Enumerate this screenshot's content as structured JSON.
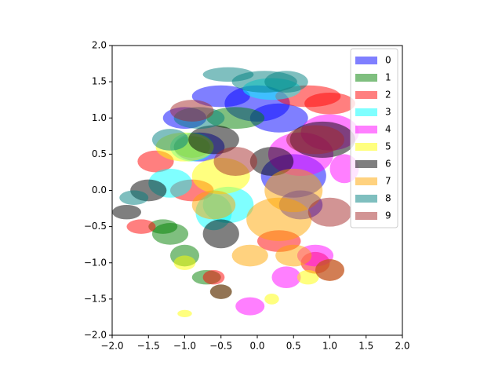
{
  "chart_data": {
    "type": "ellipse",
    "xlim": [
      -2,
      2
    ],
    "ylim": [
      -2,
      2
    ],
    "xticks": [
      {
        "value": -2,
        "label": "−2.0"
      },
      {
        "value": -1.5,
        "label": "−1.5"
      },
      {
        "value": -1,
        "label": "−1.0"
      },
      {
        "value": -0.5,
        "label": "−0.5"
      },
      {
        "value": 0,
        "label": "0.0"
      },
      {
        "value": 0.5,
        "label": "0.5"
      },
      {
        "value": 1,
        "label": "1.0"
      },
      {
        "value": 1.5,
        "label": "1.5"
      },
      {
        "value": 2,
        "label": "2.0"
      }
    ],
    "yticks": [
      {
        "value": -2,
        "label": "−2.0"
      },
      {
        "value": -1.5,
        "label": "−1.5"
      },
      {
        "value": -1,
        "label": "−1.0"
      },
      {
        "value": -0.5,
        "label": "−0.5"
      },
      {
        "value": 0,
        "label": "0.0"
      },
      {
        "value": 0.5,
        "label": "0.5"
      },
      {
        "value": 1,
        "label": "1.0"
      },
      {
        "value": 1.5,
        "label": "1.5"
      },
      {
        "value": 2,
        "label": "2.0"
      }
    ],
    "alpha": 0.5,
    "legend": "upper right",
    "series": [
      {
        "name": "0",
        "color": "#0000ff",
        "x": [
          0.0,
          -0.5,
          0.5,
          -0.8,
          0.3,
          -1.0,
          0.6
        ],
        "y": [
          1.2,
          1.3,
          0.2,
          0.6,
          1.0,
          1.0,
          -0.2
        ],
        "width": [
          0.9,
          0.8,
          0.9,
          0.7,
          0.8,
          0.6,
          0.6
        ],
        "height": [
          0.5,
          0.3,
          0.6,
          0.4,
          0.4,
          0.3,
          0.4
        ]
      },
      {
        "name": "1",
        "color": "#008000",
        "x": [
          -1.2,
          -1.0,
          -0.7,
          -0.5,
          -1.3,
          -0.9,
          -0.3
        ],
        "y": [
          -0.6,
          -0.9,
          -1.2,
          -1.4,
          -0.5,
          0.6,
          1.0
        ],
        "width": [
          0.5,
          0.4,
          0.4,
          0.3,
          0.4,
          0.5,
          0.8
        ],
        "height": [
          0.3,
          0.3,
          0.2,
          0.2,
          0.2,
          0.3,
          0.3
        ]
      },
      {
        "name": "2",
        "color": "#ff0000",
        "x": [
          0.7,
          -1.4,
          0.3,
          -1.6,
          -0.6,
          0.8,
          1.0,
          -0.9
        ],
        "y": [
          1.3,
          0.4,
          -0.7,
          -0.5,
          -1.2,
          -1.0,
          1.2,
          0.0
        ],
        "width": [
          0.9,
          0.5,
          0.6,
          0.4,
          0.3,
          0.4,
          0.7,
          0.6
        ],
        "height": [
          0.3,
          0.3,
          0.3,
          0.2,
          0.2,
          0.3,
          0.3,
          0.3
        ]
      },
      {
        "name": "3",
        "color": "#00ffff",
        "x": [
          -0.4,
          -1.2,
          0.2,
          -0.9,
          -0.6
        ],
        "y": [
          -0.2,
          0.1,
          1.4,
          0.6,
          -0.3
        ],
        "width": [
          0.7,
          0.6,
          0.8,
          0.6,
          0.5
        ],
        "height": [
          0.5,
          0.4,
          0.3,
          0.4,
          0.5
        ]
      },
      {
        "name": "4",
        "color": "#ff00ff",
        "x": [
          1.0,
          0.6,
          0.4,
          -0.1,
          0.8,
          1.2
        ],
        "y": [
          0.8,
          0.5,
          -1.2,
          -1.6,
          -0.9,
          0.3
        ],
        "width": [
          0.8,
          0.9,
          0.4,
          0.4,
          0.5,
          0.4
        ],
        "height": [
          0.5,
          0.6,
          0.3,
          0.25,
          0.3,
          0.4
        ]
      },
      {
        "name": "5",
        "color": "#ffff00",
        "x": [
          -1.0,
          -1.0,
          -1.0,
          0.2,
          0.7,
          -0.5
        ],
        "y": [
          0.6,
          -1.0,
          -1.7,
          -1.5,
          -1.2,
          0.2
        ],
        "width": [
          0.8,
          0.3,
          0.2,
          0.2,
          0.3,
          0.8
        ],
        "height": [
          0.4,
          0.2,
          0.1,
          0.15,
          0.2,
          0.5
        ]
      },
      {
        "name": "6",
        "color": "#000000",
        "x": [
          0.9,
          -0.5,
          -1.8,
          -1.5,
          -0.6,
          0.2
        ],
        "y": [
          0.7,
          -0.6,
          -0.3,
          0.0,
          0.7,
          0.4
        ],
        "width": [
          0.9,
          0.5,
          0.4,
          0.5,
          0.7,
          0.6
        ],
        "height": [
          0.5,
          0.4,
          0.2,
          0.3,
          0.4,
          0.4
        ]
      },
      {
        "name": "7",
        "color": "#ffa500",
        "x": [
          0.3,
          0.5,
          -0.1,
          0.5,
          1.0,
          -0.6
        ],
        "y": [
          -0.4,
          0.0,
          -0.9,
          -0.9,
          -1.1,
          -0.2
        ],
        "width": [
          0.9,
          0.8,
          0.5,
          0.5,
          0.4,
          0.6
        ],
        "height": [
          0.6,
          0.6,
          0.3,
          0.3,
          0.3,
          0.4
        ]
      },
      {
        "name": "8",
        "color": "#008080",
        "x": [
          -0.4,
          0.1,
          -1.7,
          -1.2,
          0.4,
          -0.8
        ],
        "y": [
          1.6,
          1.5,
          -0.1,
          0.7,
          1.5,
          1.0
        ],
        "width": [
          0.7,
          0.9,
          0.4,
          0.5,
          0.6,
          0.7
        ],
        "height": [
          0.2,
          0.3,
          0.2,
          0.3,
          0.3,
          0.3
        ]
      },
      {
        "name": "9",
        "color": "#a52a2a",
        "x": [
          1.0,
          0.8,
          -0.3,
          -0.5,
          1.0,
          -0.9
        ],
        "y": [
          -0.3,
          0.7,
          0.4,
          -1.4,
          -1.1,
          1.1
        ],
        "width": [
          0.6,
          0.8,
          0.6,
          0.3,
          0.4,
          0.6
        ],
        "height": [
          0.4,
          0.4,
          0.4,
          0.2,
          0.3,
          0.3
        ]
      }
    ]
  }
}
